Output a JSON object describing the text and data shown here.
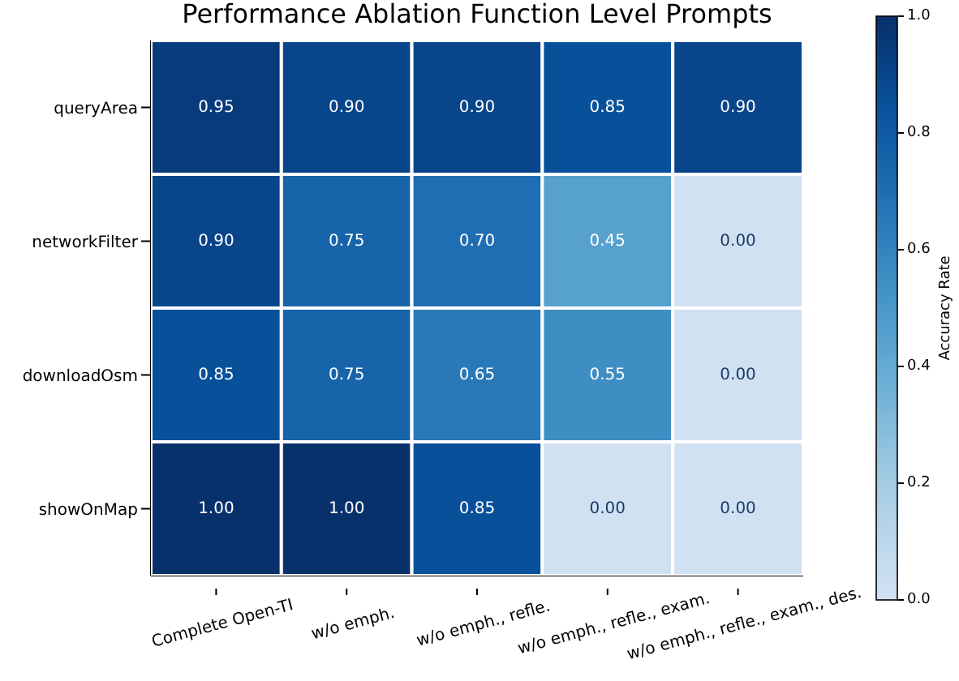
{
  "chart_data": {
    "type": "heatmap",
    "title": "Performance Ablation Function Level Prompts",
    "clabel": "Accuracy Rate",
    "categories": [
      "Complete Open-TI",
      "w/o emph.",
      "w/o emph., refle.",
      "w/o emph., refle., exam.",
      "w/o emph., refle., exam., des."
    ],
    "y_categories": [
      "queryArea",
      "networkFilter",
      "downloadOsm",
      "showOnMap"
    ],
    "cells": [
      [
        0.95,
        0.9,
        0.9,
        0.85,
        0.9
      ],
      [
        0.9,
        0.75,
        0.7,
        0.45,
        0.0
      ],
      [
        0.85,
        0.75,
        0.65,
        0.55,
        0.0
      ],
      [
        1.0,
        1.0,
        0.85,
        0.0,
        0.0
      ]
    ],
    "cell_labels": [
      [
        "0.95",
        "0.90",
        "0.90",
        "0.85",
        "0.90"
      ],
      [
        "0.90",
        "0.75",
        "0.70",
        "0.45",
        "0.00"
      ],
      [
        "0.85",
        "0.75",
        "0.65",
        "0.55",
        "0.00"
      ],
      [
        "1.00",
        "1.00",
        "0.85",
        "0.00",
        "0.00"
      ]
    ],
    "clim": [
      0,
      1
    ],
    "cticks": [
      {
        "value": 0,
        "label": "0.0"
      },
      0.2,
      0.4,
      0.6,
      0.8,
      {
        "value": 1,
        "label": "1.0"
      }
    ]
  }
}
